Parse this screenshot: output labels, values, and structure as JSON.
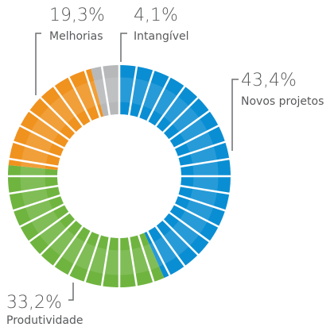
{
  "chart_data": {
    "type": "donut",
    "categories": [
      "Novos projetos",
      "Produtividade",
      "Melhorias",
      "Intangível"
    ],
    "values": [
      43.4,
      33.2,
      19.3,
      4.1
    ],
    "value_labels": [
      "43,4%",
      "33,2%",
      "19,3%",
      "4,1%"
    ],
    "colors": [
      "#0a8ed3",
      "#6fb43f",
      "#f0921e",
      "#b7b8ba"
    ]
  }
}
